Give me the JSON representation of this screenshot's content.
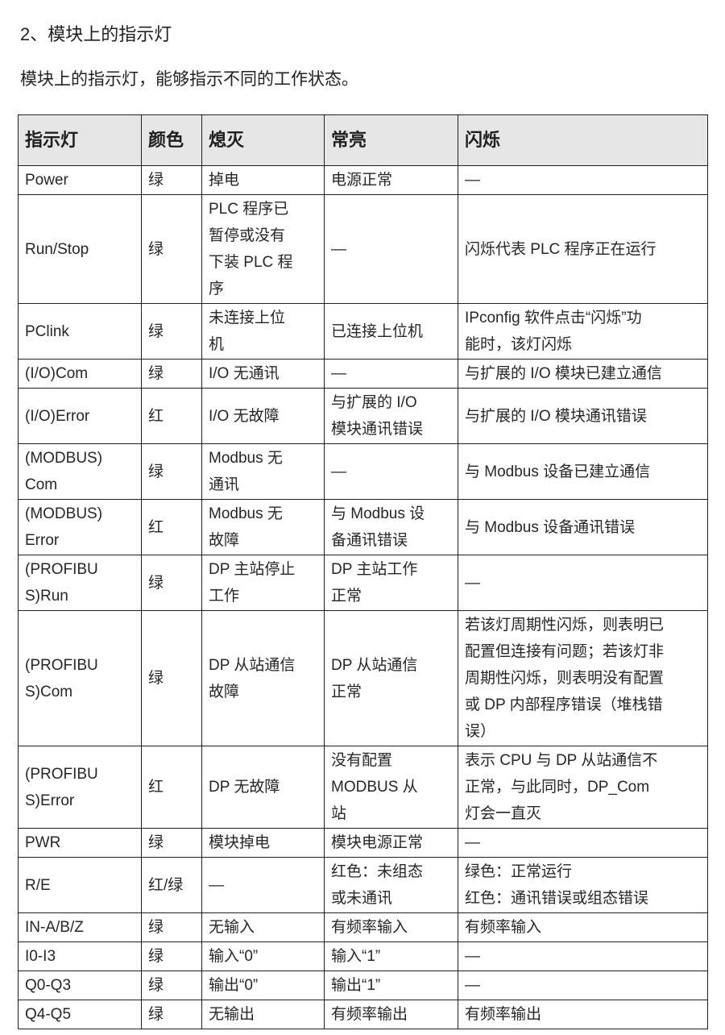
{
  "page": {
    "title": "2、模块上的指示灯",
    "intro": "模块上的指示灯，能够指示不同的工作状态。"
  },
  "colors": {
    "page_bg": "#ffffff",
    "header_bg": "#e6e6e6",
    "border": "#1f1f1f",
    "text": "#212121"
  },
  "table": {
    "headers": [
      "指示灯",
      "颜色",
      "熄灭",
      "常亮",
      "闪烁"
    ],
    "rows": [
      {
        "indicator": "Power",
        "color": "绿",
        "off": "掉电",
        "on": "电源正常",
        "flash": "—"
      },
      {
        "indicator": "Run/Stop",
        "color": "绿",
        "off": "PLC 程序已\n暂停或没有\n下装 PLC 程\n序",
        "on": "—",
        "flash": "闪烁代表 PLC 程序正在运行"
      },
      {
        "indicator": "PClink",
        "color": "绿",
        "off": "未连接上位\n机",
        "on": "已连接上位机",
        "flash": "IPconfig 软件点击“闪烁”功\n能时，该灯闪烁"
      },
      {
        "indicator": "(I/O)Com",
        "color": "绿",
        "off": "I/O 无通讯",
        "on": "—",
        "flash": "与扩展的 I/O 模块已建立通信"
      },
      {
        "indicator": "(I/O)Error",
        "color": "红",
        "off": "I/O 无故障",
        "on": "与扩展的 I/O\n模块通讯错误",
        "flash": "与扩展的 I/O 模块通讯错误"
      },
      {
        "indicator": "(MODBUS)\nCom",
        "color": "绿",
        "off": "Modbus 无\n通讯",
        "on": "—",
        "flash": "与 Modbus 设备已建立通信"
      },
      {
        "indicator": "(MODBUS)\nError",
        "color": "红",
        "off": "Modbus 无\n故障",
        "on": "与 Modbus 设\n备通讯错误",
        "flash": "与 Modbus 设备通讯错误"
      },
      {
        "indicator": "(PROFIBU\nS)Run",
        "color": "绿",
        "off": "DP 主站停止\n工作",
        "on": "DP 主站工作\n正常",
        "flash": "—"
      },
      {
        "indicator": "(PROFIBU\nS)Com",
        "color": "绿",
        "off": "DP 从站通信\n故障",
        "on": "DP 从站通信\n正常",
        "flash": "若该灯周期性闪烁，则表明已\n配置但连接有问题；若该灯非\n周期性闪烁，则表明没有配置\n或 DP 内部程序错误（堆栈错\n误）"
      },
      {
        "indicator": "(PROFIBU\nS)Error",
        "color": "红",
        "off": "DP 无故障",
        "on": "没有配置\nMODBUS 从\n站",
        "flash": "表示 CPU 与 DP 从站通信不\n正常，与此同时，DP_Com\n灯会一直灭"
      },
      {
        "indicator": "PWR",
        "color": "绿",
        "off": "模块掉电",
        "on": "模块电源正常",
        "flash": "—"
      },
      {
        "indicator": "R/E",
        "color": "红/绿",
        "off": "—",
        "on": "红色：未组态\n或未通讯",
        "flash": "绿色：正常运行\n红色：通讯错误或组态错误"
      },
      {
        "indicator": "IN-A/B/Z",
        "color": "绿",
        "off": "无输入",
        "on": "有频率输入",
        "flash": "有频率输入"
      },
      {
        "indicator": "I0-I3",
        "color": "绿",
        "off": "输入“0”",
        "on": "输入“1”",
        "flash": "—"
      },
      {
        "indicator": "Q0-Q3",
        "color": "绿",
        "off": "输出“0”",
        "on": "输出“1”",
        "flash": "—"
      },
      {
        "indicator": "Q4-Q5",
        "color": "绿",
        "off": "无输出",
        "on": "有频率输出",
        "flash": "有频率输出"
      }
    ]
  }
}
